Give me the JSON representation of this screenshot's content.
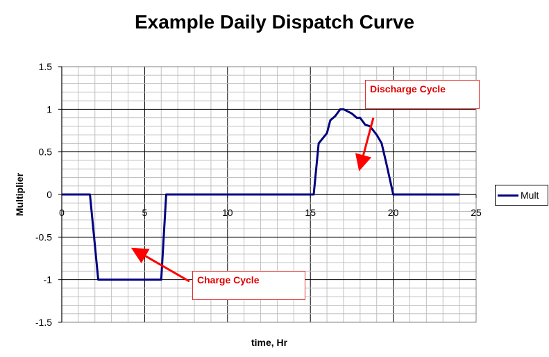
{
  "chart_data": {
    "type": "line",
    "title": "Example Daily Dispatch Curve",
    "xlabel": "time, Hr",
    "ylabel": "Multiplier",
    "xlim": [
      0,
      25
    ],
    "ylim": [
      -1.5,
      1.5
    ],
    "x_ticks": [
      "0",
      "5",
      "10",
      "15",
      "20",
      "25"
    ],
    "y_ticks": [
      "1.5",
      "1",
      "0.5",
      "0",
      "-0.5",
      "-1",
      "-1.5"
    ],
    "grid": true,
    "legend_position": "right",
    "series": [
      {
        "name": "Mult",
        "color": "#000080",
        "x": [
          0,
          1.7,
          2.2,
          6,
          6.3,
          15.2,
          15.5,
          16,
          16.2,
          16.5,
          16.8,
          17,
          17.5,
          17.8,
          18,
          18.3,
          18.6,
          19,
          19.3,
          19.6,
          20,
          24
        ],
        "y": [
          0,
          0,
          -1,
          -1,
          0,
          0,
          0.6,
          0.72,
          0.87,
          0.92,
          1.0,
          1.0,
          0.95,
          0.9,
          0.9,
          0.82,
          0.8,
          0.7,
          0.6,
          0.35,
          0,
          0
        ]
      }
    ],
    "annotations": [
      {
        "text": "Discharge Cycle",
        "arrow_from": [
          18.8,
          0.9
        ],
        "arrow_to": [
          18.0,
          0.32
        ]
      },
      {
        "text": "Charge Cycle",
        "arrow_from": [
          7.7,
          -1.02
        ],
        "arrow_to": [
          4.4,
          -0.65
        ]
      }
    ]
  }
}
